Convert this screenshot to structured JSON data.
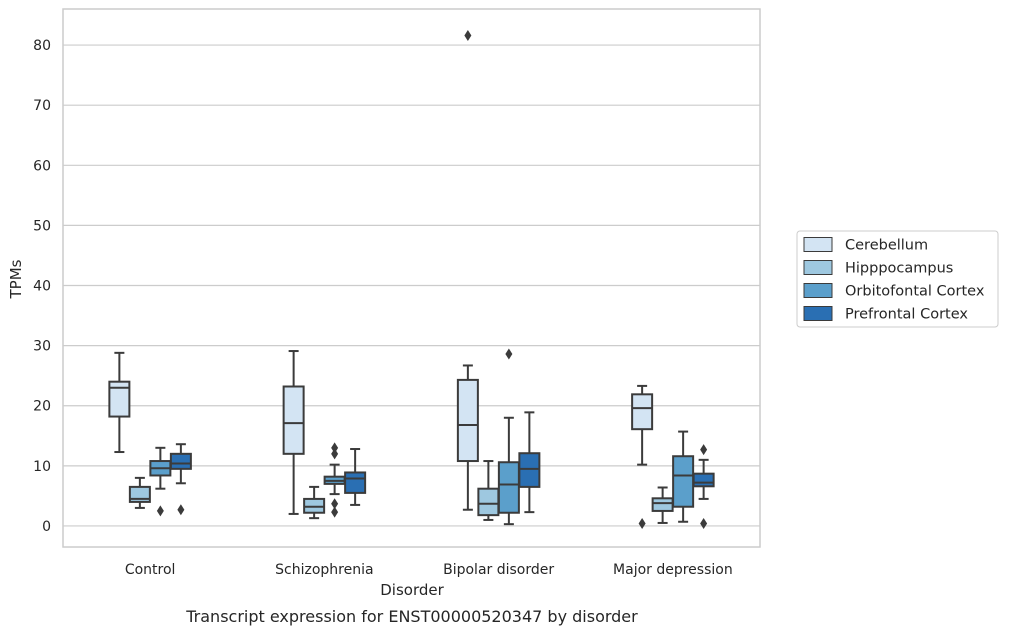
{
  "chart_data": {
    "type": "boxplot",
    "caption": "Transcript expression for ENST00000520347 by disorder",
    "xlabel": "Disorder",
    "ylabel": "TPMs",
    "ylim": [
      -3.5,
      86
    ],
    "yticks": [
      0,
      10,
      20,
      30,
      40,
      50,
      60,
      70,
      80
    ],
    "categories": [
      "Control",
      "Schizophrenia",
      "Bipolar disorder",
      "Major depression"
    ],
    "grid": "horizontal",
    "legend_position": "right",
    "series": [
      {
        "name": "Cerebellum",
        "color": "#d3e4f3",
        "boxes": [
          {
            "whisker_low": 12.3,
            "q1": 18.2,
            "median": 23.0,
            "q3": 24.0,
            "whisker_high": 28.8,
            "outliers": []
          },
          {
            "whisker_low": 2.0,
            "q1": 12.0,
            "median": 17.1,
            "q3": 23.2,
            "whisker_high": 29.1,
            "outliers": []
          },
          {
            "whisker_low": 2.7,
            "q1": 10.8,
            "median": 16.8,
            "q3": 24.3,
            "whisker_high": 26.7,
            "outliers": [
              81.6
            ]
          },
          {
            "whisker_low": 10.2,
            "q1": 16.1,
            "median": 19.6,
            "q3": 21.9,
            "whisker_high": 23.3,
            "outliers": [
              0.4
            ]
          }
        ]
      },
      {
        "name": "Hipppocampus",
        "color": "#9ec8e0",
        "boxes": [
          {
            "whisker_low": 3.0,
            "q1": 4.0,
            "median": 4.5,
            "q3": 6.5,
            "whisker_high": 8.0,
            "outliers": []
          },
          {
            "whisker_low": 1.3,
            "q1": 2.2,
            "median": 3.2,
            "q3": 4.5,
            "whisker_high": 6.5,
            "outliers": []
          },
          {
            "whisker_low": 1.0,
            "q1": 1.8,
            "median": 3.7,
            "q3": 6.2,
            "whisker_high": 10.8,
            "outliers": []
          },
          {
            "whisker_low": 0.5,
            "q1": 2.5,
            "median": 3.8,
            "q3": 4.6,
            "whisker_high": 6.4,
            "outliers": []
          }
        ]
      },
      {
        "name": "Orbitofontal Cortex",
        "color": "#5b9fcb",
        "boxes": [
          {
            "whisker_low": 6.2,
            "q1": 8.4,
            "median": 9.6,
            "q3": 10.8,
            "whisker_high": 13.0,
            "outliers": [
              2.5
            ]
          },
          {
            "whisker_low": 5.3,
            "q1": 7.0,
            "median": 7.5,
            "q3": 8.2,
            "whisker_high": 10.2,
            "outliers": [
              13.0,
              12.0,
              3.7,
              2.3
            ]
          },
          {
            "whisker_low": 0.3,
            "q1": 2.2,
            "median": 6.9,
            "q3": 10.6,
            "whisker_high": 18.0,
            "outliers": [
              28.6
            ]
          },
          {
            "whisker_low": 0.7,
            "q1": 3.2,
            "median": 8.4,
            "q3": 11.6,
            "whisker_high": 15.7,
            "outliers": []
          }
        ]
      },
      {
        "name": "Prefrontal Cortex",
        "color": "#2a6fb3",
        "boxes": [
          {
            "whisker_low": 7.1,
            "q1": 9.5,
            "median": 10.4,
            "q3": 12.0,
            "whisker_high": 13.6,
            "outliers": [
              2.7
            ]
          },
          {
            "whisker_low": 3.5,
            "q1": 5.5,
            "median": 7.9,
            "q3": 8.9,
            "whisker_high": 12.8,
            "outliers": []
          },
          {
            "whisker_low": 2.3,
            "q1": 6.5,
            "median": 9.5,
            "q3": 12.1,
            "whisker_high": 18.9,
            "outliers": []
          },
          {
            "whisker_low": 4.5,
            "q1": 6.6,
            "median": 7.2,
            "q3": 8.7,
            "whisker_high": 11.0,
            "outliers": [
              12.7,
              0.4
            ]
          }
        ]
      }
    ]
  }
}
